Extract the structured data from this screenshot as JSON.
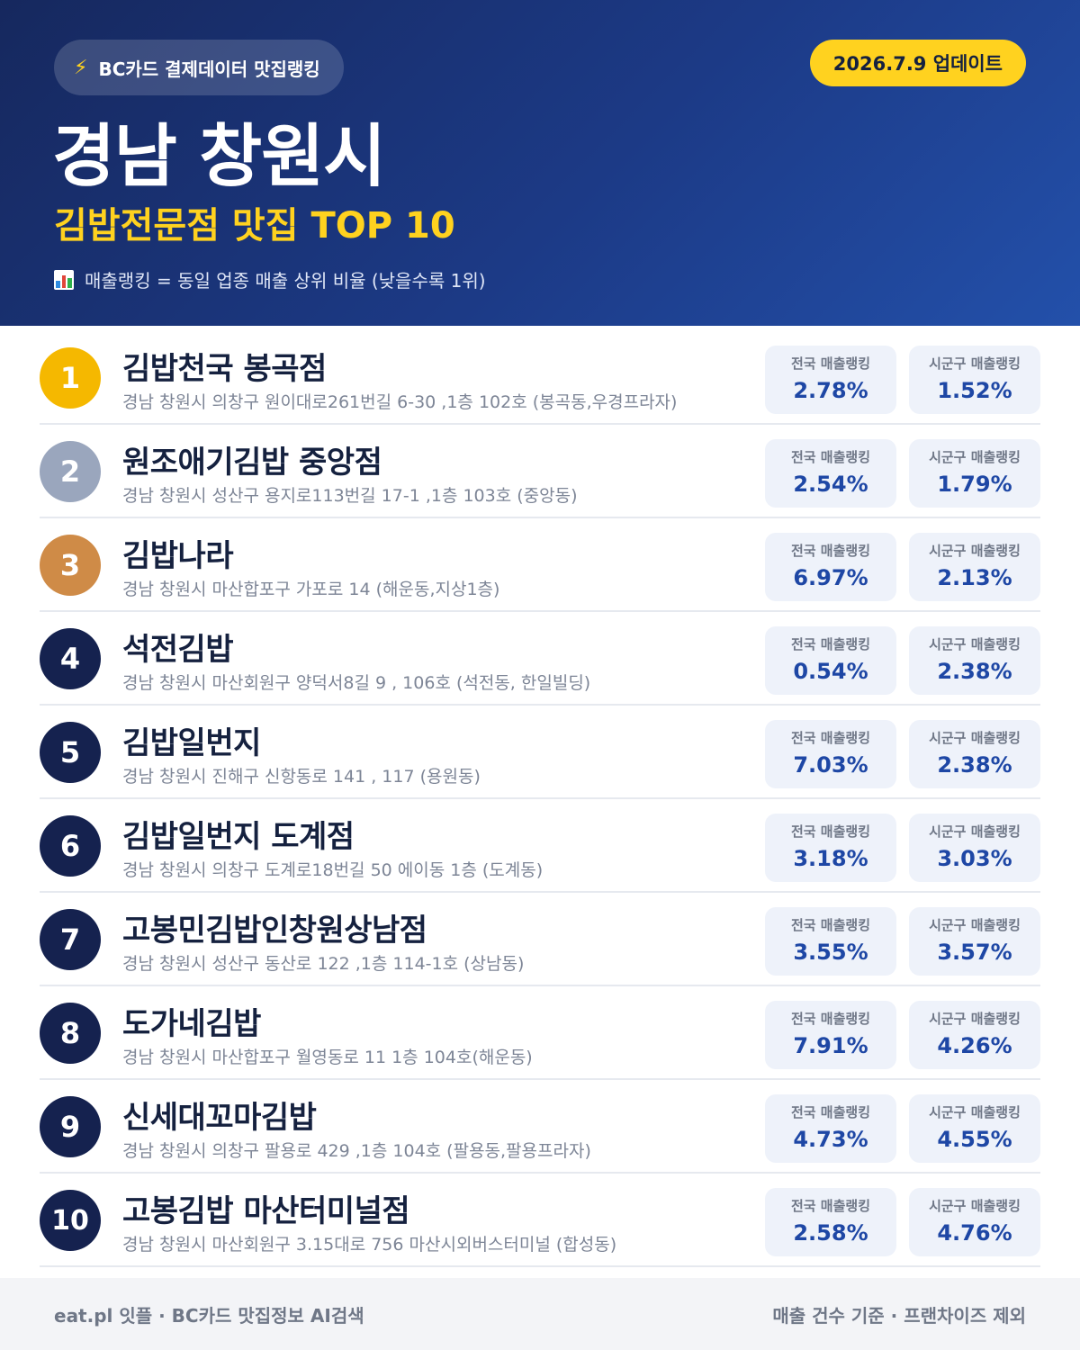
{
  "header": {
    "badge_icon": "lightning-bolt-icon",
    "badge_text": "BC카드 결제데이터 맛집랭킹",
    "update_text": "2026.7.9 업데이트",
    "region": "경남 창원시",
    "subtitle": "김밥전문점 맛집 TOP 10",
    "legend_icon": "bar-chart-icon",
    "legend_text": "매출랭킹 = 동일 업종 매출 상위 비율 (낮을수록 1위)"
  },
  "labels": {
    "national": "전국 매출랭킹",
    "district": "시군구 매출랭킹"
  },
  "colors": {
    "gold": "#f5b800",
    "silver": "#9aa6bd",
    "bronze": "#cf8b47",
    "navy": "#15224f",
    "accent_yellow": "#ffd21f",
    "value_blue": "#1e47a5"
  },
  "restaurants": [
    {
      "rank": "1",
      "name": "김밥천국 봉곡점",
      "address": "경남 창원시 의창구 원이대로261번길 6-30 ,1층 102호 (봉곡동,우경프라자)",
      "national": "2.78%",
      "district": "1.52%",
      "color": "#f5b800"
    },
    {
      "rank": "2",
      "name": "원조애기김밥 중앙점",
      "address": "경남 창원시 성산구 용지로113번길 17-1 ,1층 103호 (중앙동)",
      "national": "2.54%",
      "district": "1.79%",
      "color": "#9aa6bd"
    },
    {
      "rank": "3",
      "name": "김밥나라",
      "address": "경남 창원시 마산합포구 가포로 14 (해운동,지상1층)",
      "national": "6.97%",
      "district": "2.13%",
      "color": "#cf8b47"
    },
    {
      "rank": "4",
      "name": "석전김밥",
      "address": "경남 창원시 마산회원구 양덕서8길 9 , 106호 (석전동, 한일빌딩)",
      "national": "0.54%",
      "district": "2.38%",
      "color": "#15224f"
    },
    {
      "rank": "5",
      "name": "김밥일번지",
      "address": "경남 창원시 진해구 신항동로 141 , 117 (용원동)",
      "national": "7.03%",
      "district": "2.38%",
      "color": "#15224f"
    },
    {
      "rank": "6",
      "name": "김밥일번지 도계점",
      "address": "경남 창원시 의창구 도계로18번길 50 에이동 1층 (도계동)",
      "national": "3.18%",
      "district": "3.03%",
      "color": "#15224f"
    },
    {
      "rank": "7",
      "name": "고봉민김밥인창원상남점",
      "address": "경남 창원시 성산구 동산로 122 ,1층 114-1호 (상남동)",
      "national": "3.55%",
      "district": "3.57%",
      "color": "#15224f"
    },
    {
      "rank": "8",
      "name": "도가네김밥",
      "address": "경남 창원시 마산합포구 월영동로 11 1층 104호(해운동)",
      "national": "7.91%",
      "district": "4.26%",
      "color": "#15224f"
    },
    {
      "rank": "9",
      "name": "신세대꼬마김밥",
      "address": "경남 창원시 의창구 팔용로 429 ,1층 104호 (팔용동,팔용프라자)",
      "national": "4.73%",
      "district": "4.55%",
      "color": "#15224f"
    },
    {
      "rank": "10",
      "name": "고봉김밥 마산터미널점",
      "address": "경남 창원시 마산회원구 3.15대로 756 마산시외버스터미널 (합성동)",
      "national": "2.58%",
      "district": "4.76%",
      "color": "#15224f"
    }
  ],
  "footer": {
    "left": "eat.pl 잇플 · BC카드 맛집정보 AI검색",
    "right": "매출 건수 기준 · 프랜차이즈 제외"
  }
}
